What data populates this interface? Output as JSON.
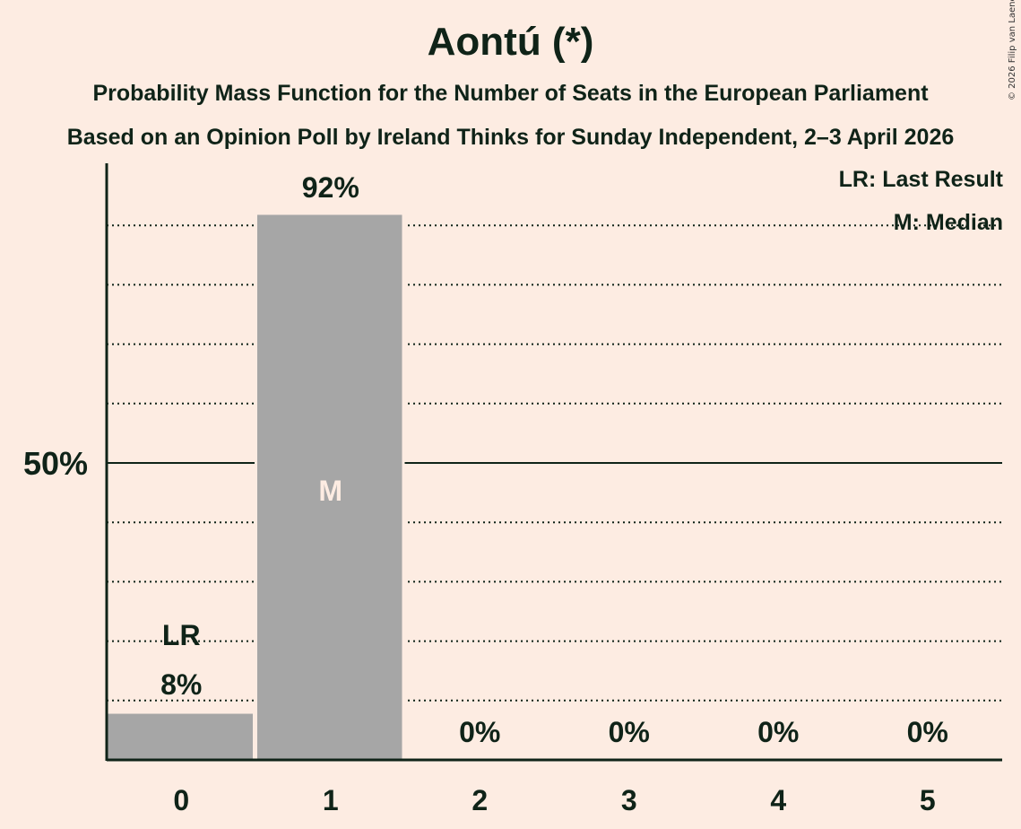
{
  "title": "Aontú (*)",
  "subtitle1": "Probability Mass Function for the Number of Seats in the European Parliament",
  "subtitle2": "Based on an Opinion Poll by Ireland Thinks for Sunday Independent, 2–3 April 2026",
  "copyright": "© 2026 Filip van Laenen",
  "legend": {
    "lr": "LR: Last Result",
    "m": "M: Median"
  },
  "colors": {
    "background": "#FDECE2",
    "bar": "#A6A6A6",
    "text": "#0F2318",
    "median_label": "#FDECE2"
  },
  "chart_data": {
    "type": "bar",
    "title": "Aontú (*)",
    "subtitle": "Probability Mass Function for the Number of Seats in the European Parliament",
    "xlabel": "",
    "ylabel": "",
    "categories": [
      "0",
      "1",
      "2",
      "3",
      "4",
      "5"
    ],
    "values": [
      8,
      92,
      0,
      0,
      0,
      0
    ],
    "value_labels": [
      "8%",
      "92%",
      "0%",
      "0%",
      "0%",
      "0%"
    ],
    "ylim": [
      0,
      100
    ],
    "y_ticks": [
      {
        "value": 50,
        "label": "50%"
      }
    ],
    "gridlines_every": 10,
    "annotations": [
      {
        "category": "0",
        "label": "LR",
        "meaning": "Last Result"
      },
      {
        "category": "1",
        "label": "M",
        "meaning": "Median"
      }
    ],
    "legend_position": "top-right"
  }
}
